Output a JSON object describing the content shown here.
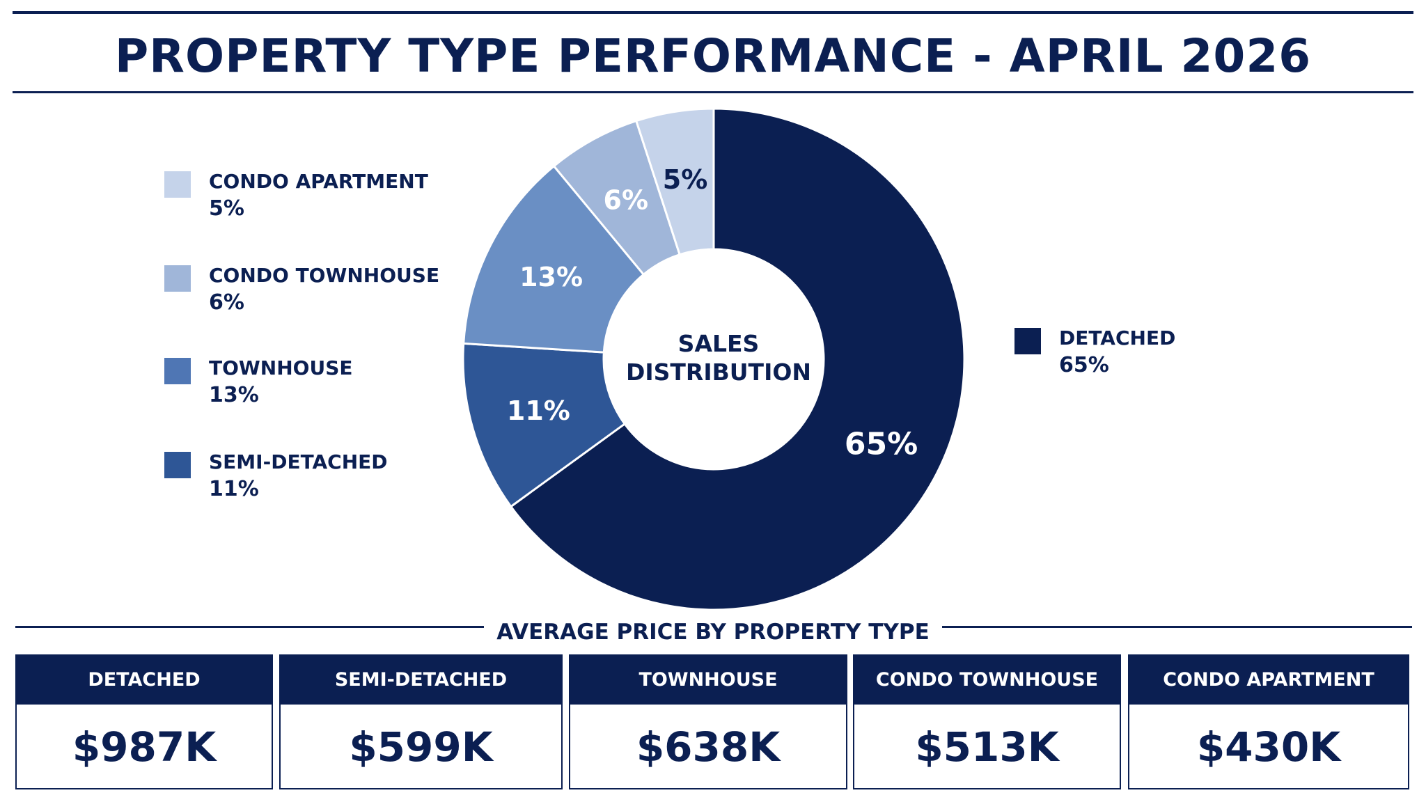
{
  "title": "PROPERTY TYPE PERFORMANCE - APRIL 2026",
  "chart_data": {
    "type": "pie",
    "center_label": [
      "SALES",
      "DISTRIBUTION"
    ],
    "categories": [
      "DETACHED",
      "SEMI-DETACHED",
      "TOWNHOUSE",
      "CONDO TOWNHOUSE",
      "CONDO APARTMENT"
    ],
    "values": [
      65,
      11,
      13,
      6,
      5
    ],
    "labels": [
      "65%",
      "11%",
      "13%",
      "6%",
      "5%"
    ],
    "colors": [
      "#0b1f52",
      "#2e5696",
      "#6a8fc4",
      "#a0b6d9",
      "#c5d3ea"
    ],
    "label_colors": [
      "#ffffff",
      "#ffffff",
      "#ffffff",
      "#ffffff",
      "#0b1f52"
    ],
    "legend_placement": "split left and right"
  },
  "legend": {
    "left": [
      {
        "name": "CONDO APARTMENT",
        "pct": "5%",
        "color": "#c5d3ea"
      },
      {
        "name": "CONDO TOWNHOUSE",
        "pct": "6%",
        "color": "#a0b6d9"
      },
      {
        "name": "TOWNHOUSE",
        "pct": "13%",
        "color": "#4f76b4"
      },
      {
        "name": "SEMI-DETACHED",
        "pct": "11%",
        "color": "#2e5696"
      }
    ],
    "right": [
      {
        "name": "DETACHED",
        "pct": "65%",
        "color": "#0b1f52"
      }
    ]
  },
  "price_section": {
    "title": "AVERAGE PRICE BY PROPERTY TYPE",
    "cards": [
      {
        "label": "DETACHED",
        "value": "$987K"
      },
      {
        "label": "SEMI-DETACHED",
        "value": "$599K"
      },
      {
        "label": "TOWNHOUSE",
        "value": "$638K"
      },
      {
        "label": "CONDO TOWNHOUSE",
        "value": "$513K"
      },
      {
        "label": "CONDO APARTMENT",
        "value": "$430K"
      }
    ]
  }
}
